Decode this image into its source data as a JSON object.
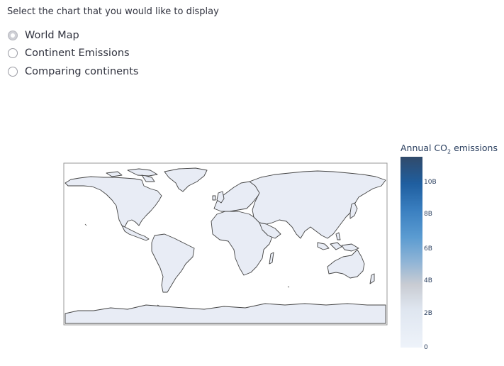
{
  "prompt": "Select the chart that you would like to display",
  "options": [
    {
      "label": "World Map",
      "selected": true
    },
    {
      "label": "Continent Emissions",
      "selected": false
    },
    {
      "label": "Comparing continents",
      "selected": false
    }
  ],
  "colorbar": {
    "title_prefix": "Annual CO",
    "title_subscript": "2",
    "title_suffix": " emissions",
    "ticks": [
      "10B",
      "8B",
      "6B",
      "4B",
      "2B",
      "0"
    ],
    "tick_values": [
      10,
      8,
      6,
      4,
      2,
      0
    ],
    "range": [
      0,
      11.4
    ]
  },
  "colors": {
    "land": "#e8ecf5",
    "coastline": "#444444",
    "frame": "#9a9a9a"
  }
}
